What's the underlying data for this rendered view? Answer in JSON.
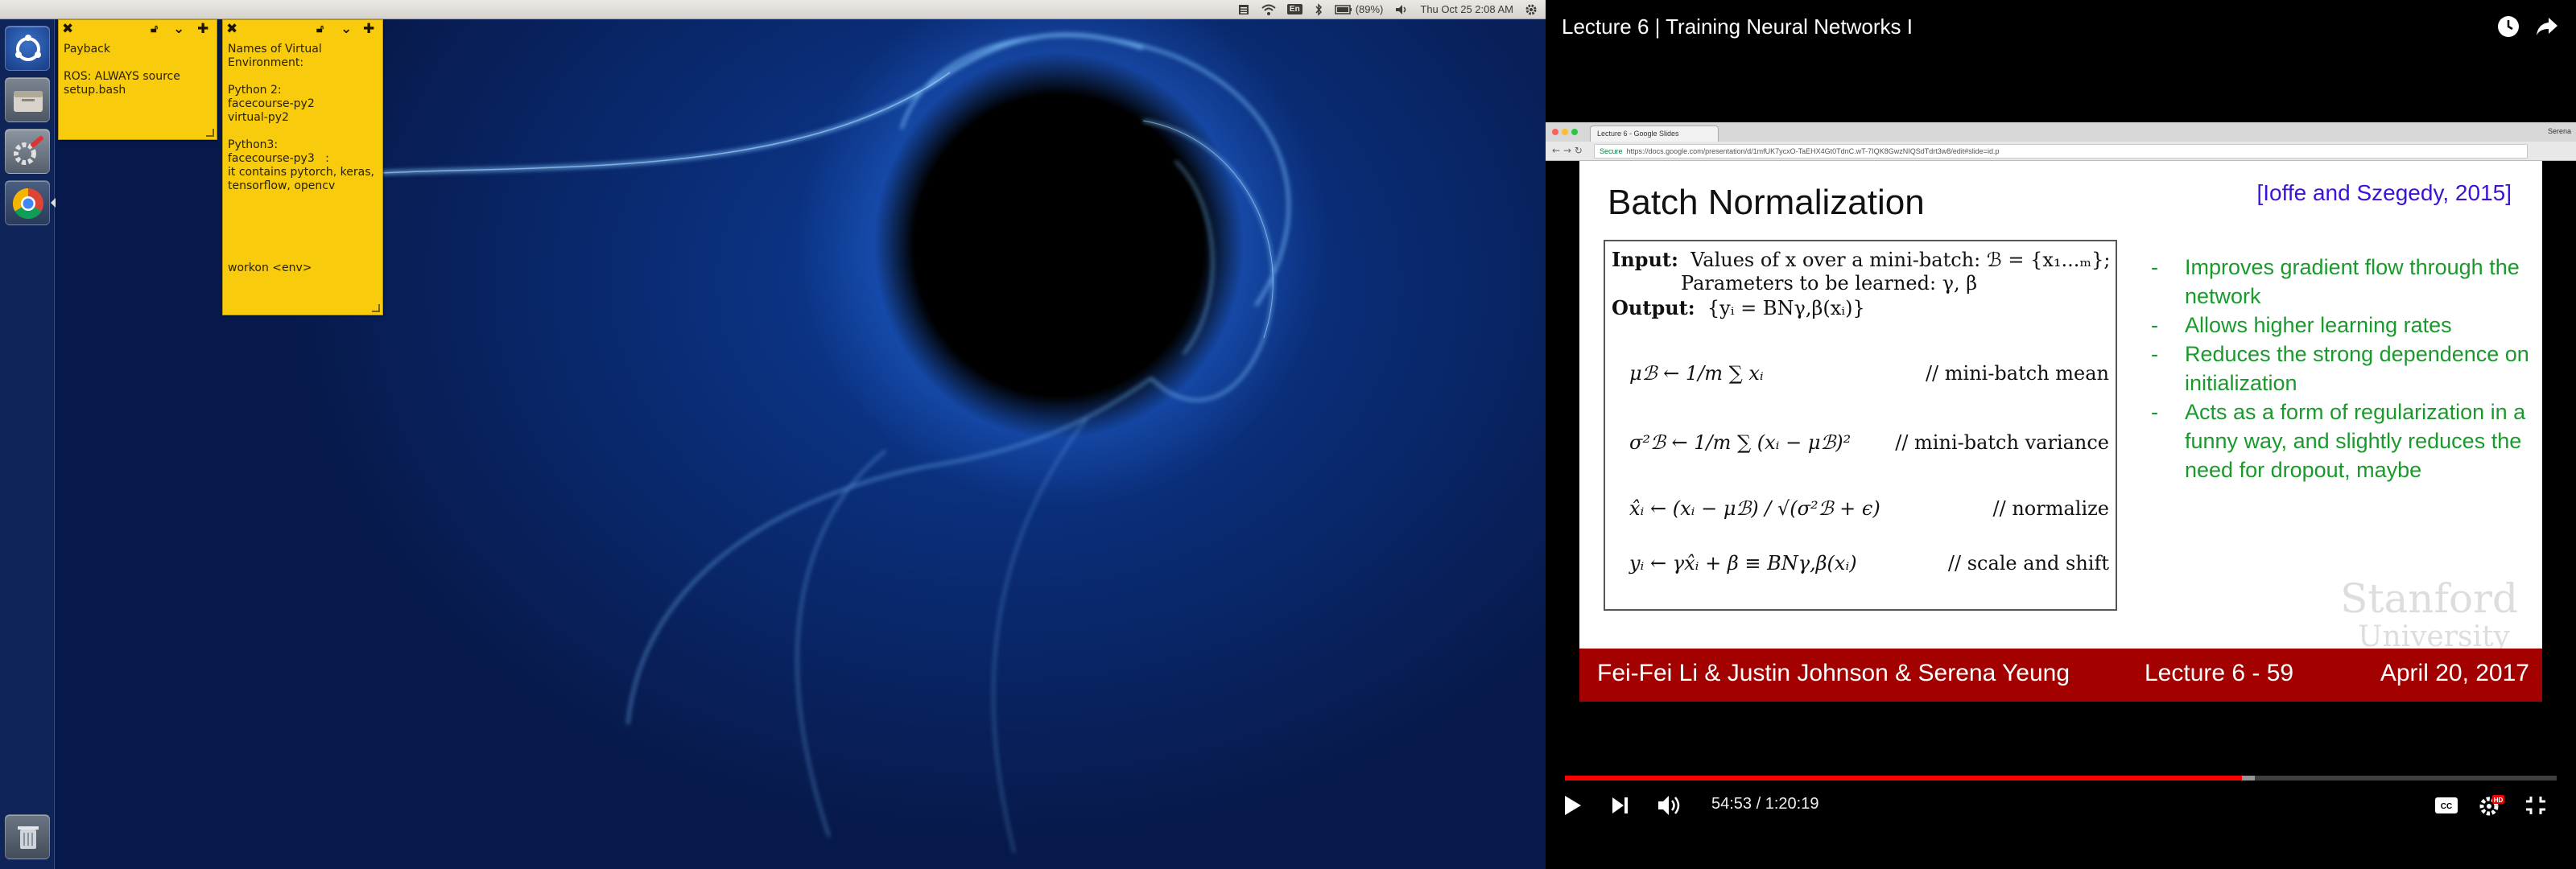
{
  "top_panel": {
    "battery": "(89%)",
    "keyboard_layout": "En",
    "datetime": "Thu Oct 25  2:08 AM",
    "icons": [
      "menu-icon",
      "wifi-icon",
      "keyboard-layout-icon",
      "bluetooth-icon",
      "battery-icon",
      "volume-icon",
      "gear-icon"
    ]
  },
  "launcher": {
    "items": [
      {
        "name": "ubuntu-dash-icon"
      },
      {
        "name": "file-manager-icon"
      },
      {
        "name": "system-settings-icon"
      },
      {
        "name": "chrome-icon"
      },
      {
        "name": "trash-icon"
      }
    ]
  },
  "sticky_notes": [
    {
      "text": "Payback\n\nROS: ALWAYS source\nsetup.bash"
    },
    {
      "text": "Names of Virtual\nEnvironment:\n\nPython 2:\nfacecourse-py2\nvirtual-py2\n\nPython3:\nfacecourse-py3   :\nit contains pytorch, keras,\ntensorflow, opencv\n\n\n\n\n\nworkon <env>"
    }
  ],
  "player": {
    "title": "Lecture 6 | Training Neural Networks I",
    "time": "54:53 / 1:20:19",
    "progress": 0.683,
    "buffered": 0.696,
    "hd_badge": "HD"
  },
  "browser": {
    "tab_title": "Lecture 6 - Google Slides",
    "secure_label": "Secure",
    "url": "https://docs.google.com/presentation/d/1mfUK7ycxO-TaEHX4Gt0TdnC.wT-7IQK8GwzNIQSdTdrt3w8/edit#slide=id.p",
    "profile": "Serena"
  },
  "slide": {
    "title": "Batch Normalization",
    "citation": "[Ioffe and Szegedy, 2015]",
    "algorithm": {
      "input_label": "Input:",
      "input_text": "Values of x over a mini-batch: ℬ = {x₁...ₘ};",
      "params_text": "Parameters to be learned: γ, β",
      "output_label": "Output:",
      "output_text": "{yᵢ = BNγ,β(xᵢ)}",
      "lines": [
        {
          "eq": "μℬ ← 1/m ∑ xᵢ",
          "comment": "// mini-batch mean"
        },
        {
          "eq": "σ²ℬ ← 1/m ∑ (xᵢ − μℬ)²",
          "comment": "// mini-batch variance"
        },
        {
          "eq": "x̂ᵢ ← (xᵢ − μℬ) / √(σ²ℬ + ϵ)",
          "comment": "// normalize"
        },
        {
          "eq": "yᵢ ← γx̂ᵢ + β ≡ BNγ,β(xᵢ)",
          "comment": "// scale and shift"
        }
      ]
    },
    "bullets": [
      "Improves gradient flow through the network",
      "Allows higher learning rates",
      "Reduces the strong dependence on initialization",
      "Acts as a form of regularization in a funny way, and slightly reduces the need for dropout, maybe"
    ],
    "logo_line1": "Stanford",
    "logo_line2": "University",
    "footer": {
      "authors": "Fei-Fei Li & Justin Johnson & Serena Yeung",
      "lecture": "Lecture 6 - 59",
      "date": "April 20, 2017"
    }
  },
  "colors": {
    "sticky": "#f8cb0c",
    "slide_green": "#1a9a2c",
    "slide_red": "#a30000",
    "citation_blue": "#3d12d6",
    "progress_red": "#ff0000"
  }
}
